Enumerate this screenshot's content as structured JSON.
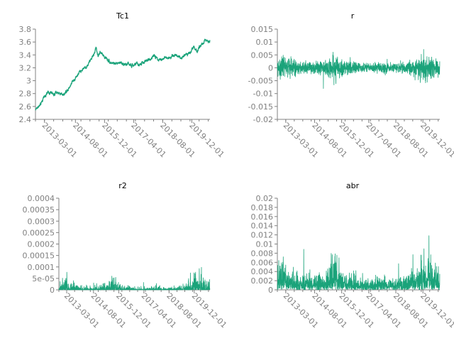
{
  "chart_data": [
    {
      "type": "line",
      "title": "Tc1",
      "color": "#1aa37a",
      "x_start": "2012-10-01",
      "x_end": "2020-09-30",
      "x_ticks": [
        "2013-03-01",
        "2014-08-01",
        "2015-12-01",
        "2017-04-01",
        "2018-08-01",
        "2019-12-01"
      ],
      "ylim": [
        2.4,
        3.8
      ],
      "y_ticks": [
        2.4,
        2.6,
        2.8,
        3,
        3.2,
        3.4,
        3.6,
        3.8
      ],
      "y_tick_labels": [
        "2.4",
        "2.6",
        "2.8",
        "3",
        "3.2",
        "3.4",
        "3.6",
        "3.8"
      ],
      "noise": 0.0,
      "series": [
        {
          "x": [
            "2012-10-01",
            "2012-11-15",
            "2013-01-01",
            "2013-02-15",
            "2013-04-01",
            "2013-06-01",
            "2013-08-01",
            "2013-10-01",
            "2013-12-01",
            "2014-02-01",
            "2014-04-01",
            "2014-06-01",
            "2014-08-01",
            "2014-10-01",
            "2014-12-01",
            "2015-02-01",
            "2015-04-01",
            "2015-06-01",
            "2015-07-15",
            "2015-08-15",
            "2015-09-15",
            "2015-11-01",
            "2016-01-01",
            "2016-03-01",
            "2016-05-01",
            "2016-07-01",
            "2016-09-01",
            "2016-11-01",
            "2017-01-01",
            "2017-03-01",
            "2017-05-01",
            "2017-07-01",
            "2017-09-01",
            "2017-11-01",
            "2018-01-01",
            "2018-03-01",
            "2018-05-01",
            "2018-07-01",
            "2018-09-01",
            "2018-11-01",
            "2019-01-01",
            "2019-03-01",
            "2019-05-01",
            "2019-07-01",
            "2019-09-01",
            "2019-11-01",
            "2020-01-01",
            "2020-03-01",
            "2020-05-01",
            "2020-07-01",
            "2020-09-30"
          ],
          "values": [
            2.55,
            2.6,
            2.62,
            2.75,
            2.8,
            2.82,
            2.78,
            2.82,
            2.8,
            2.8,
            2.88,
            2.98,
            3.05,
            3.12,
            3.18,
            3.22,
            3.3,
            3.4,
            3.52,
            3.38,
            3.45,
            3.4,
            3.35,
            3.3,
            3.27,
            3.25,
            3.3,
            3.25,
            3.26,
            3.22,
            3.26,
            3.24,
            3.28,
            3.3,
            3.34,
            3.38,
            3.36,
            3.33,
            3.36,
            3.34,
            3.37,
            3.4,
            3.38,
            3.36,
            3.44,
            3.42,
            3.55,
            3.45,
            3.55,
            3.6,
            3.64
          ]
        }
      ]
    },
    {
      "type": "line",
      "title": "r",
      "color": "#1aa37a",
      "x_start": "2012-10-01",
      "x_end": "2020-09-30",
      "x_ticks": [
        "2013-03-01",
        "2014-08-01",
        "2015-12-01",
        "2017-04-01",
        "2018-08-01",
        "2019-12-01"
      ],
      "ylim": [
        -0.02,
        0.015
      ],
      "y_ticks": [
        -0.02,
        -0.015,
        -0.01,
        -0.005,
        0,
        0.005,
        0.01,
        0.015
      ],
      "y_tick_labels": [
        "-0.02",
        "-0.015",
        "-0.01",
        "-0.005",
        "0",
        "0.005",
        "0.01",
        "0.015"
      ],
      "noise": 1.0,
      "series": [
        {
          "x": [
            "2012-10-01",
            "2013-01-01",
            "2013-04-01",
            "2013-07-01",
            "2014-01-01",
            "2014-07-01",
            "2015-01-01",
            "2015-06-01",
            "2015-07-15",
            "2015-09-01",
            "2015-12-01",
            "2016-06-01",
            "2017-01-01",
            "2017-06-01",
            "2018-01-01",
            "2018-06-01",
            "2019-01-01",
            "2019-07-01",
            "2019-10-01",
            "2019-12-01",
            "2020-03-01",
            "2020-06-01",
            "2020-09-30"
          ],
          "values": [
            0.004,
            0.007,
            0.005,
            0.004,
            0.003,
            0.003,
            0.003,
            0.005,
            0.008,
            0.006,
            0.004,
            0.003,
            0.002,
            0.002,
            0.003,
            0.002,
            0.003,
            0.004,
            0.005,
            0.007,
            0.006,
            0.005,
            0.004
          ]
        }
      ]
    },
    {
      "type": "line",
      "title": "r2",
      "color": "#1aa37a",
      "x_start": "2012-10-01",
      "x_end": "2020-09-30",
      "x_ticks": [
        "2013-03-01",
        "2014-08-01",
        "2015-12-01",
        "2017-04-01",
        "2018-08-01",
        "2019-12-01"
      ],
      "ylim": [
        0,
        0.0004
      ],
      "y_ticks": [
        0,
        5e-05,
        0.0001,
        0.00015,
        0.0002,
        0.00025,
        0.0003,
        0.00035,
        0.0004
      ],
      "y_tick_labels": [
        "0",
        "5e-05",
        "0.0001",
        "0.00015",
        "0.0002",
        "0.00025",
        "0.0003",
        "0.00035",
        "0.0004"
      ],
      "noise": 2.0,
      "series": [
        {
          "x": [
            "2012-10-01",
            "2013-01-01",
            "2013-04-01",
            "2013-07-01",
            "2014-01-01",
            "2014-07-01",
            "2015-01-01",
            "2015-06-01",
            "2015-07-15",
            "2015-09-01",
            "2015-12-01",
            "2016-06-01",
            "2017-01-01",
            "2017-06-01",
            "2018-01-01",
            "2018-06-01",
            "2019-01-01",
            "2019-07-01",
            "2019-10-01",
            "2019-12-01",
            "2020-03-01",
            "2020-06-01",
            "2020-09-30"
          ],
          "values": [
            1.2e-05,
            3e-05,
            1.5e-05,
            1e-05,
            8e-06,
            8e-06,
            8e-06,
            2e-05,
            6e-05,
            3e-05,
            1.4e-05,
            8e-06,
            4e-06,
            4e-06,
            8e-06,
            4e-06,
            8e-06,
            1.4e-05,
            2e-05,
            4e-05,
            3e-05,
            2e-05,
            1.4e-05
          ]
        }
      ]
    },
    {
      "type": "line",
      "title": "abr",
      "color": "#1aa37a",
      "x_start": "2012-10-01",
      "x_end": "2020-09-30",
      "x_ticks": [
        "2013-03-01",
        "2014-08-01",
        "2015-12-01",
        "2017-04-01",
        "2018-08-01",
        "2019-12-01"
      ],
      "ylim": [
        0,
        0.02
      ],
      "y_ticks": [
        0,
        0.002,
        0.004,
        0.006,
        0.008,
        0.01,
        0.012,
        0.014,
        0.016,
        0.018,
        0.02
      ],
      "y_tick_labels": [
        "0",
        "0.002",
        "0.004",
        "0.006",
        "0.008",
        "0.01",
        "0.012",
        "0.014",
        "0.016",
        "0.018",
        "0.02"
      ],
      "noise": 3.0,
      "series": [
        {
          "x": [
            "2012-10-01",
            "2013-01-01",
            "2013-04-01",
            "2013-07-01",
            "2014-01-01",
            "2014-07-01",
            "2015-01-01",
            "2015-06-01",
            "2015-07-15",
            "2015-09-01",
            "2015-12-01",
            "2016-06-01",
            "2017-01-01",
            "2017-06-01",
            "2018-01-01",
            "2018-06-01",
            "2019-01-01",
            "2019-07-01",
            "2019-10-01",
            "2019-12-01",
            "2020-03-01",
            "2020-06-01",
            "2020-09-30"
          ],
          "values": [
            0.004,
            0.007,
            0.005,
            0.004,
            0.003,
            0.003,
            0.003,
            0.005,
            0.008,
            0.006,
            0.004,
            0.003,
            0.002,
            0.002,
            0.003,
            0.002,
            0.003,
            0.004,
            0.005,
            0.007,
            0.006,
            0.005,
            0.004
          ]
        }
      ]
    }
  ]
}
